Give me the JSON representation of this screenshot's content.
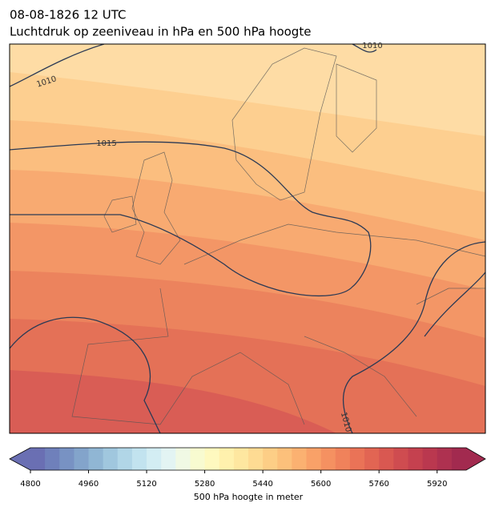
{
  "header": {
    "title": "08-08-1826 12 UTC",
    "subtitle": "Luchtdruk op zeeniveau in hPa en 500 hPa hoogte"
  },
  "map": {
    "contour_labels": [
      "1010",
      "1015",
      "1010",
      "1010"
    ]
  },
  "colorbar": {
    "range": [
      4800,
      6000
    ],
    "ticks": [
      4800,
      4960,
      5120,
      5280,
      5440,
      5600,
      5760,
      5920
    ],
    "label": "500 hPa hoogte in meter",
    "colors": [
      "#6a6fb3",
      "#6f80bb",
      "#7892c3",
      "#83a4cb",
      "#90b6d4",
      "#a0c7de",
      "#b1d6e7",
      "#c2e3ef",
      "#d3edf3",
      "#e3f4f3",
      "#f0f9e4",
      "#f8fbd0",
      "#fef9bf",
      "#fff1ad",
      "#fee7a0",
      "#fedb93",
      "#fdce86",
      "#fcc07b",
      "#fbb171",
      "#f9a168",
      "#f59161",
      "#f0825b",
      "#ea7357",
      "#e26553",
      "#d95851",
      "#cf4c50",
      "#c5414f",
      "#ba384f",
      "#ae3150",
      "#a22a4f"
    ]
  }
}
